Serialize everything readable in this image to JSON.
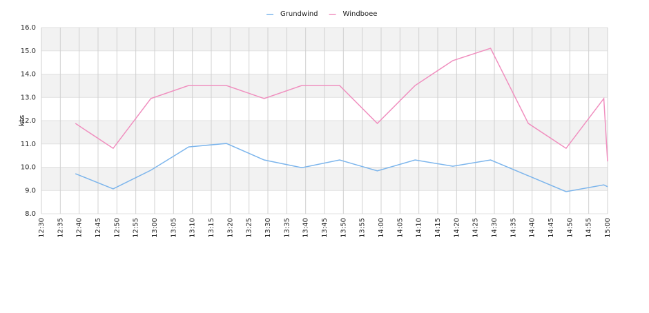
{
  "chart_data": {
    "type": "line",
    "y_label": "kts",
    "x": [
      "12:39",
      "12:49",
      "12:59",
      "13:09",
      "13:19",
      "13:29",
      "13:39",
      "13:49",
      "13:59",
      "14:09",
      "14:19",
      "14:29",
      "14:39",
      "14:49",
      "14:59",
      "15:00"
    ],
    "series": [
      {
        "name": "Grundwind",
        "color": "#7cb5ec",
        "values": [
          9.72,
          9.07,
          9.87,
          10.87,
          11.02,
          10.31,
          9.98,
          10.31,
          9.84,
          10.31,
          10.04,
          10.31,
          9.63,
          8.95,
          9.24,
          9.16
        ]
      },
      {
        "name": "Windboee",
        "color": "#f08fbf",
        "values": [
          11.88,
          10.81,
          12.95,
          13.51,
          13.51,
          12.95,
          13.51,
          13.51,
          11.88,
          13.51,
          14.58,
          15.11,
          11.88,
          10.81,
          12.95,
          10.25
        ]
      }
    ],
    "xlim": [
      "12:30",
      "15:00"
    ],
    "xticks": [
      "12:30",
      "12:35",
      "12:40",
      "12:45",
      "12:50",
      "12:55",
      "13:00",
      "13:05",
      "13:10",
      "13:15",
      "13:20",
      "13:25",
      "13:30",
      "13:35",
      "13:40",
      "13:45",
      "13:50",
      "13:55",
      "14:00",
      "14:05",
      "14:10",
      "14:15",
      "14:20",
      "14:25",
      "14:30",
      "14:35",
      "14:40",
      "14:45",
      "14:50",
      "14:55",
      "15:00"
    ],
    "ylim": [
      8,
      16
    ],
    "yticks": [
      {
        "value": 8,
        "label": "8.0"
      },
      {
        "value": 9,
        "label": "9.0"
      },
      {
        "value": 10,
        "label": "10.0"
      },
      {
        "value": 11,
        "label": "11.0"
      },
      {
        "value": 12,
        "label": "12.0"
      },
      {
        "value": 13,
        "label": "13.0"
      },
      {
        "value": 14,
        "label": "14.0"
      },
      {
        "value": 15,
        "label": "15.0"
      },
      {
        "value": 16,
        "label": "16.0"
      }
    ],
    "grid": true,
    "legend": "top"
  }
}
